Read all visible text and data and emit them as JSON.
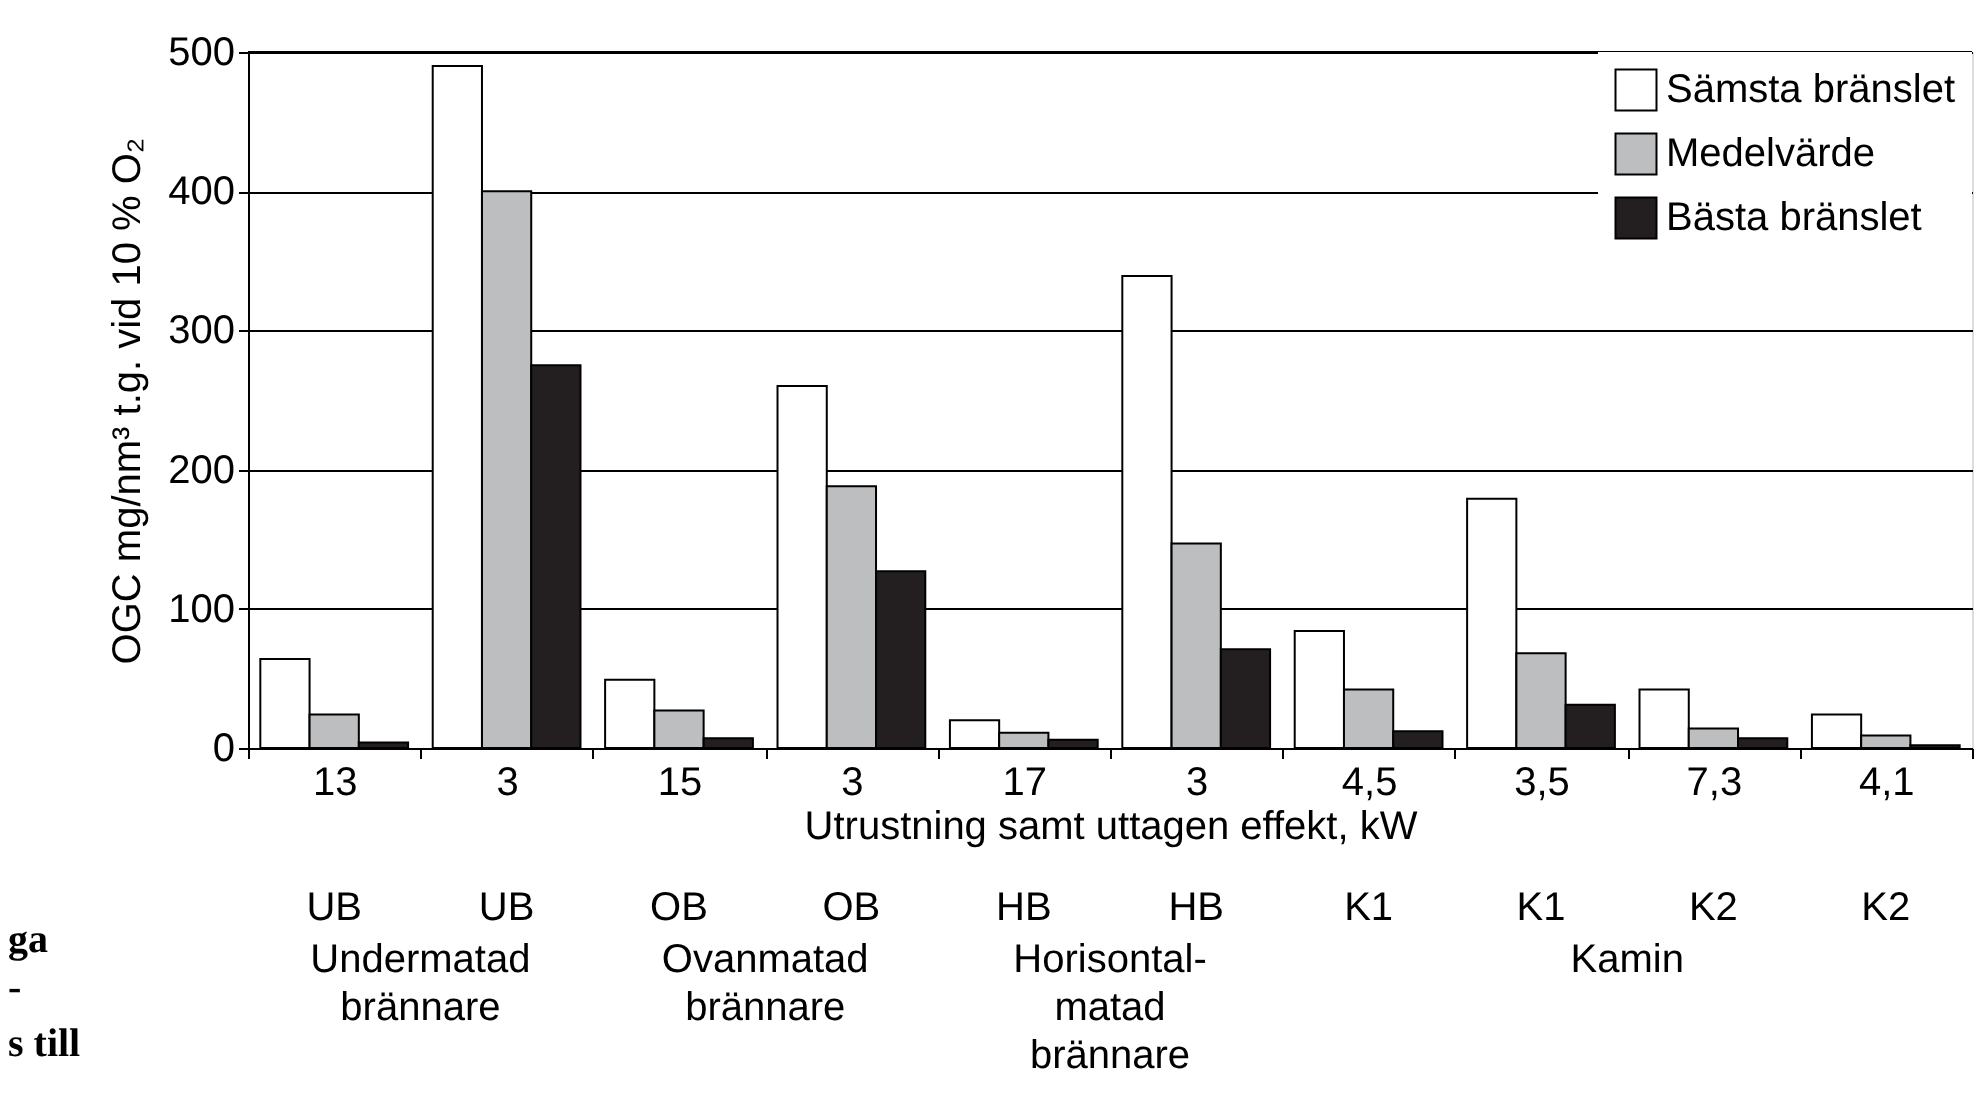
{
  "chart_data": {
    "type": "bar",
    "ylabel": "OGC mg/nm³ t.g. vid 10 % O₂",
    "xlabel": "Utrustning samt uttagen effekt, kW",
    "categories": [
      "13",
      "3",
      "15",
      "3",
      "17",
      "3",
      "4,5",
      "3,5",
      "7,3",
      "4,1"
    ],
    "series": [
      {
        "name": "Sämsta bränslet",
        "color": "#ffffff",
        "values": [
          64,
          490,
          49,
          260,
          20,
          339,
          84,
          179,
          42,
          24
        ]
      },
      {
        "name": "Medelvärde",
        "color": "#bcbec0",
        "values": [
          24,
          400,
          27,
          188,
          11,
          147,
          42,
          68,
          14,
          9
        ]
      },
      {
        "name": "Bästa bränslet",
        "color": "#231f20",
        "values": [
          4,
          275,
          7,
          127,
          6,
          71,
          12,
          31,
          7,
          2
        ]
      }
    ],
    "ylim": [
      0,
      500
    ],
    "yticks": [
      0,
      100,
      200,
      300,
      400,
      500
    ],
    "grid": "y",
    "legend": "top right",
    "annotations": [
      "UB",
      "UB",
      "OB",
      "OB",
      "HB",
      "HB",
      "K1",
      "K1",
      "K2",
      "K2",
      "Undermatad\nbrännare",
      "Ovanmatad\nbrännare",
      "Horisontal-\nmatad\nbrännare",
      "Kamin",
      "ga",
      "-",
      "s till"
    ]
  }
}
